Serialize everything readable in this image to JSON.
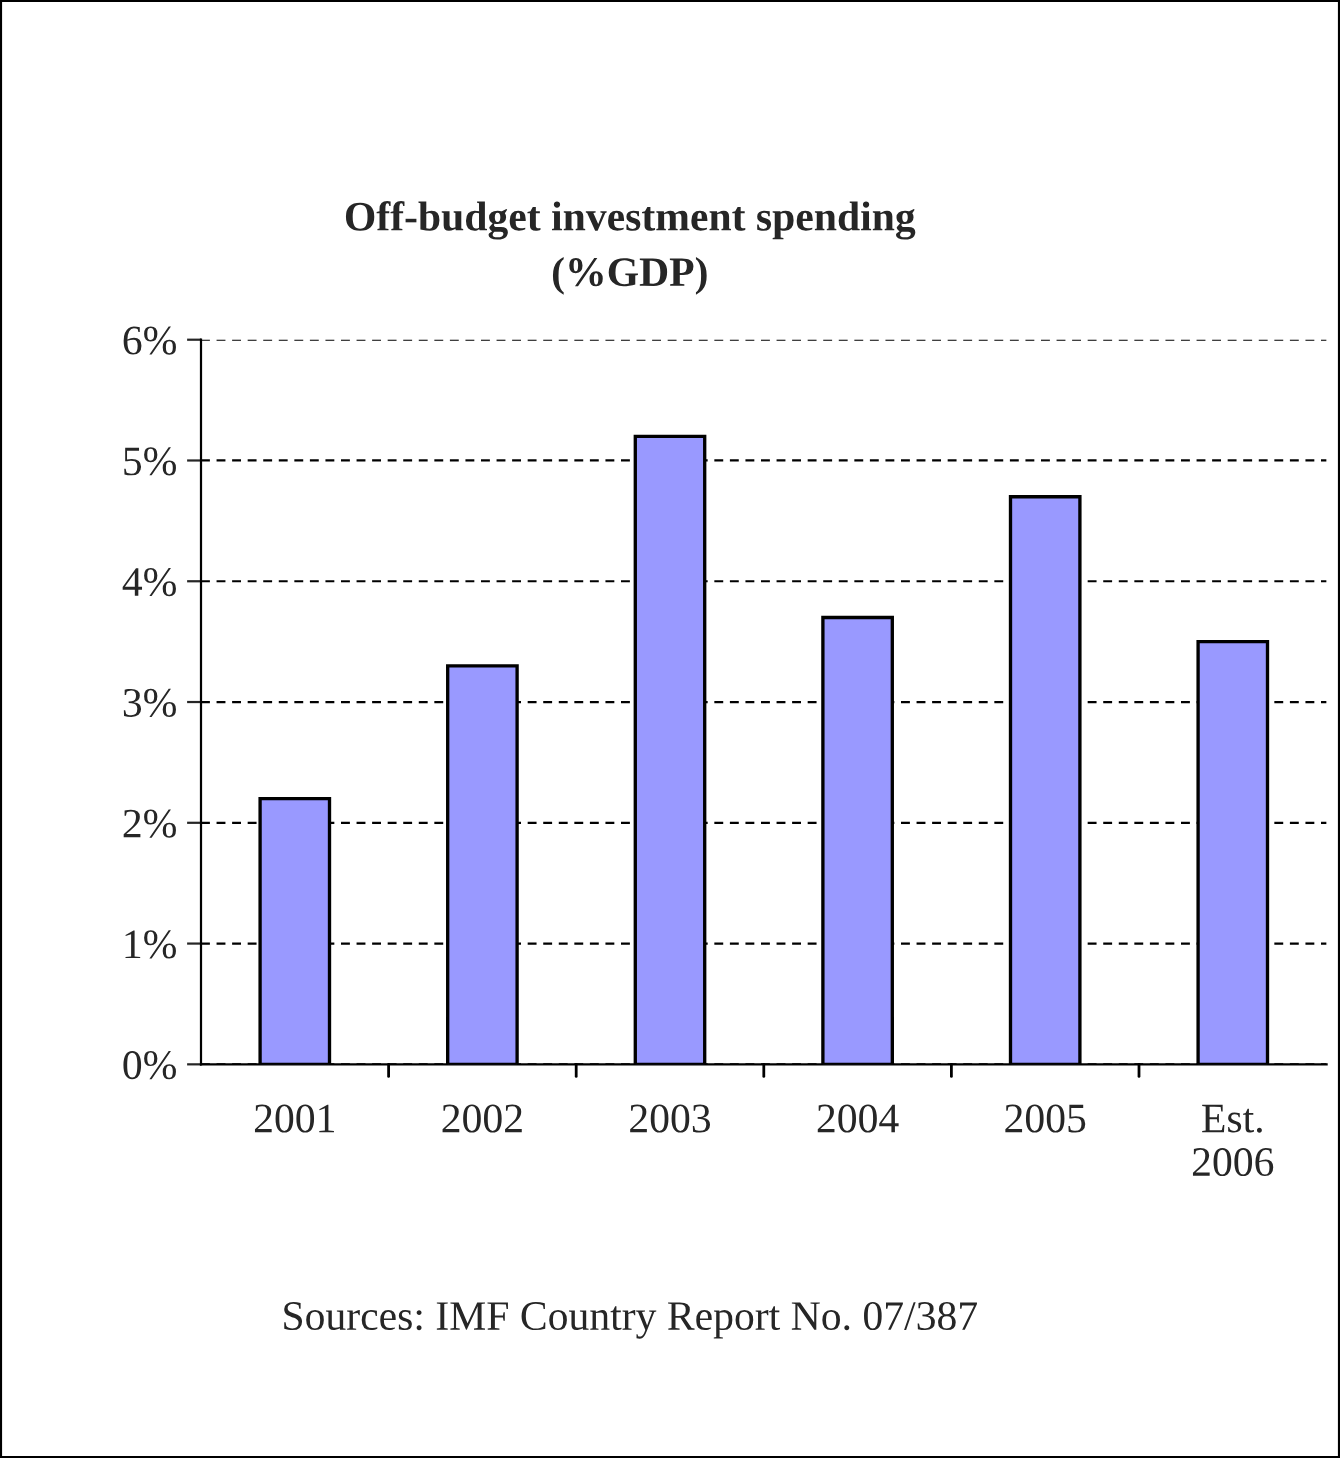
{
  "chart_data": {
    "type": "bar",
    "title": "Off-budget investment spending\n(%GDP)",
    "categories": [
      "2001",
      "2002",
      "2003",
      "2004",
      "2005",
      "Est.\n2006"
    ],
    "values": [
      2.2,
      3.3,
      5.2,
      3.7,
      4.7,
      3.5
    ],
    "color": "#9999ff",
    "ylim": [
      0,
      6
    ],
    "yticks": [
      {
        "value": 0,
        "label": "0%"
      },
      {
        "value": 1,
        "label": "1%"
      },
      {
        "value": 2,
        "label": "2%"
      },
      {
        "value": 3,
        "label": "3%"
      },
      {
        "value": 4,
        "label": "4%"
      },
      {
        "value": 5,
        "label": "5%"
      },
      {
        "value": 6,
        "label": "6%"
      }
    ],
    "grid": "y",
    "annotations": [
      "Sources: IMF Country Report No. 07/387"
    ]
  }
}
